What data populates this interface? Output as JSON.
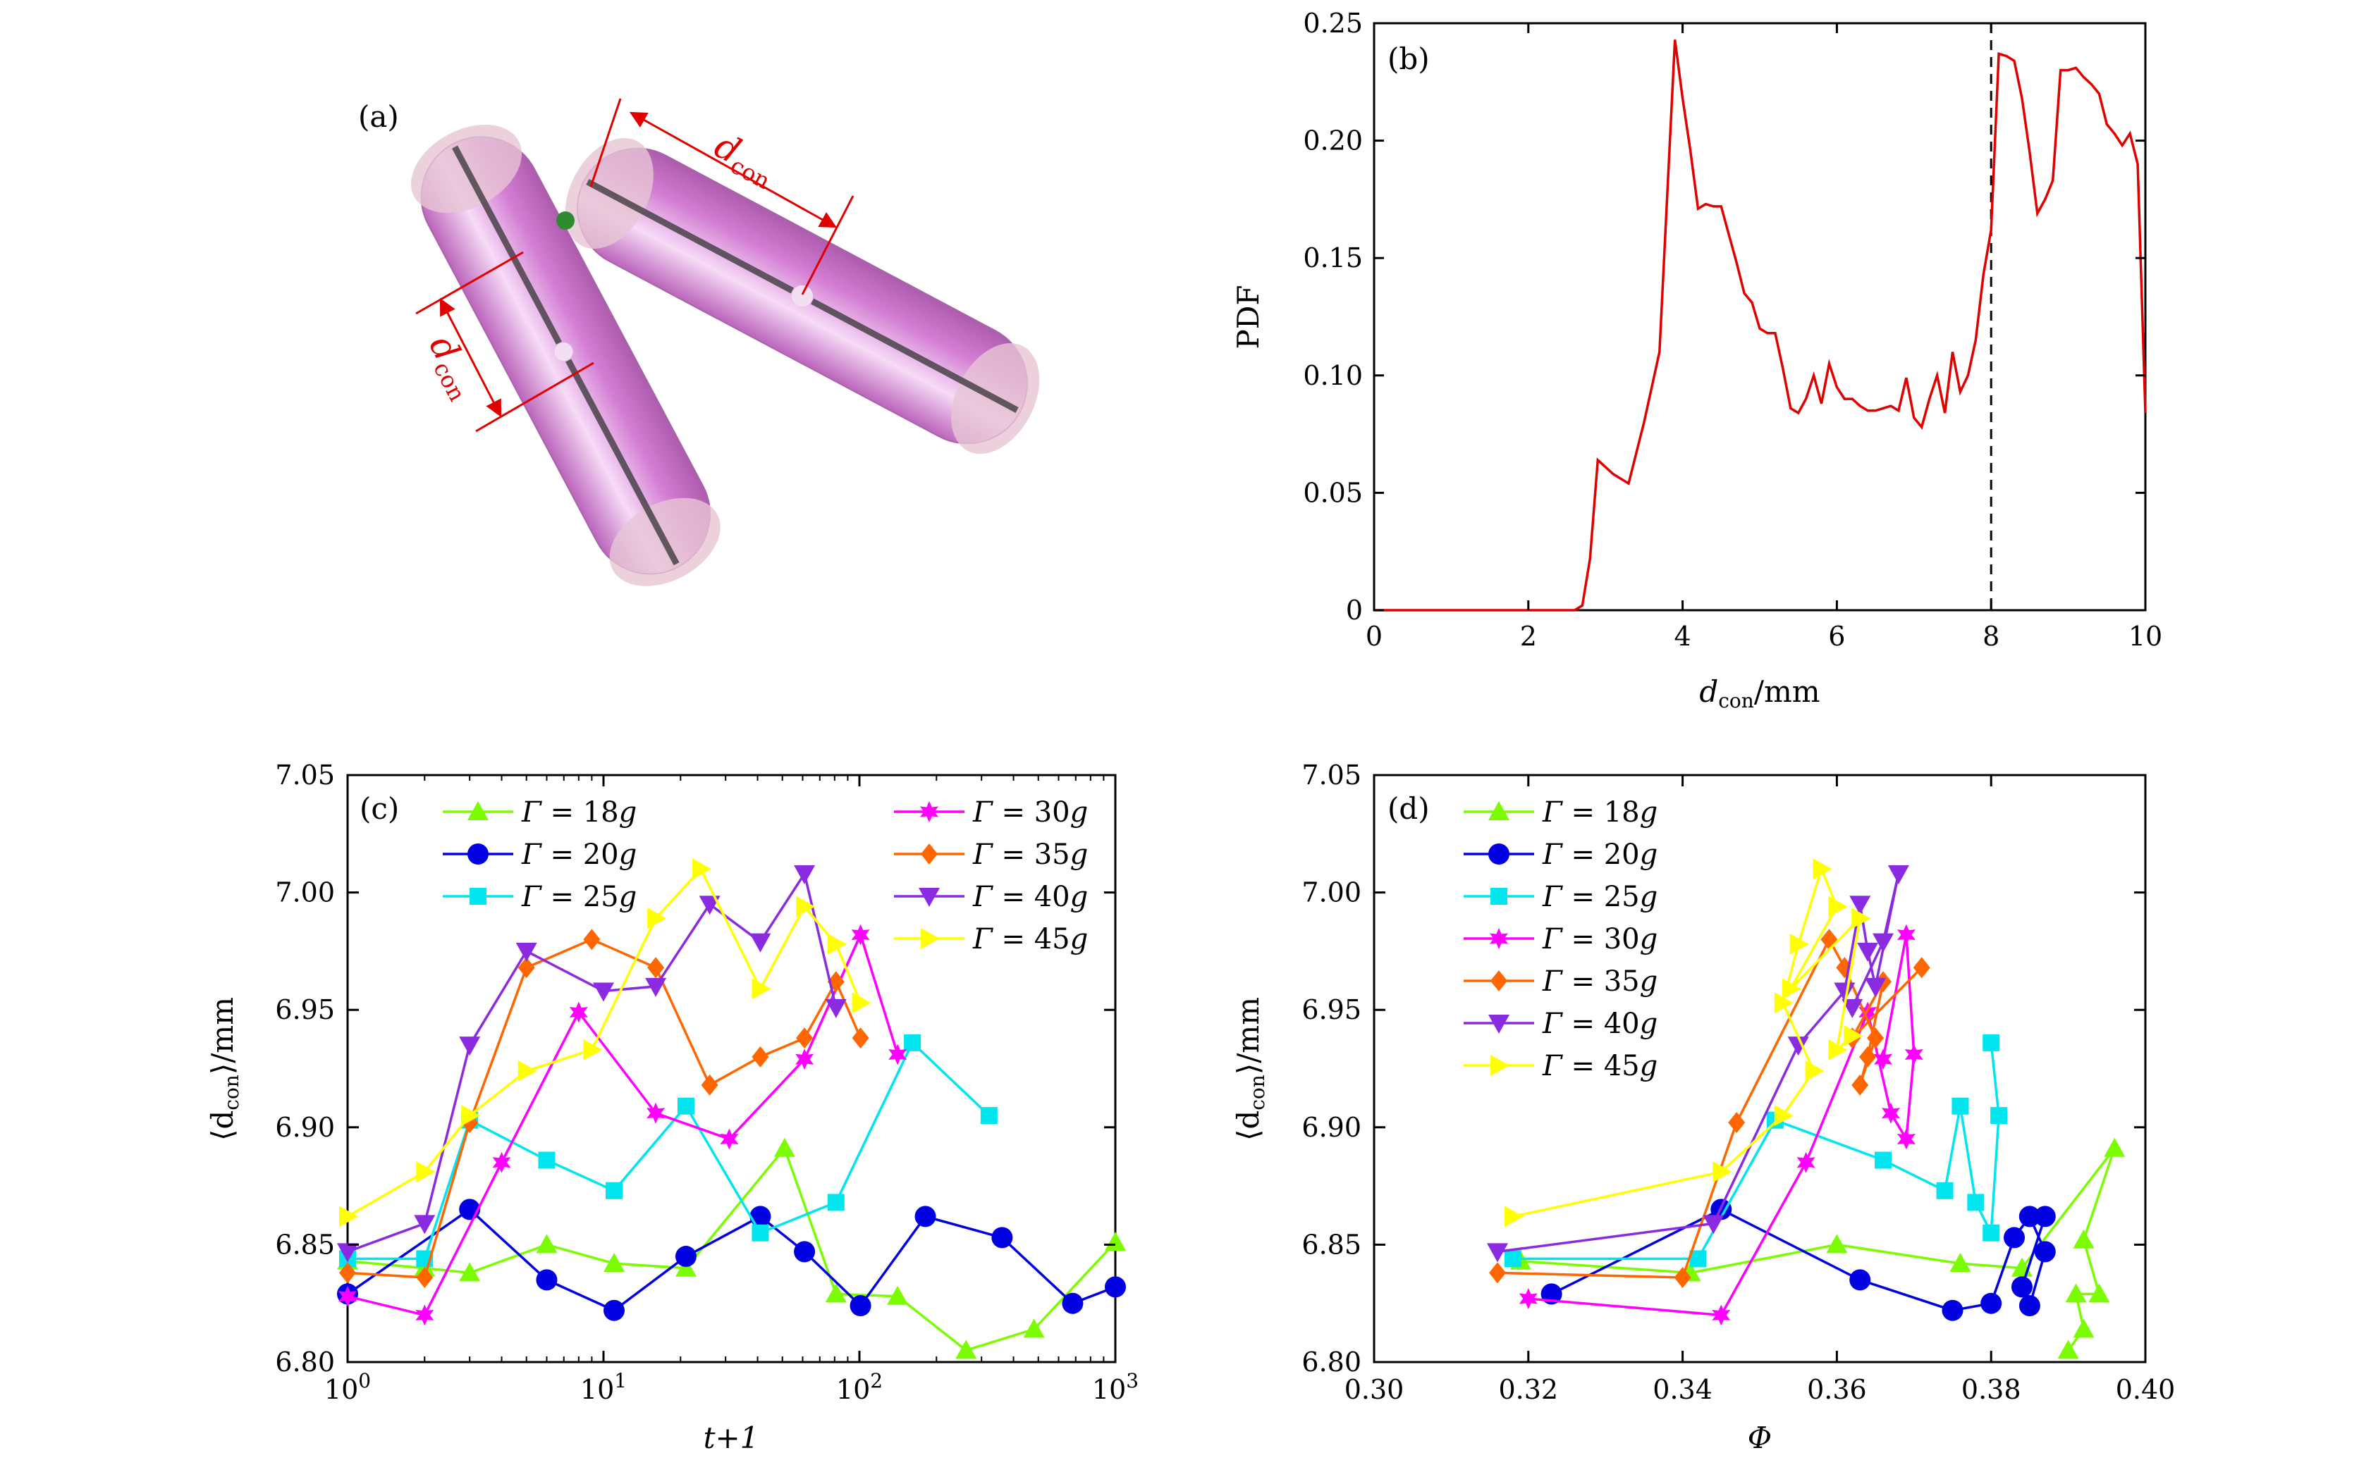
{
  "colors": {
    "g18": "#7cfc00",
    "g20": "#0000e0",
    "g25": "#00e5ee",
    "g30": "#ff00ff",
    "g35": "#ff6600",
    "g40": "#8a2be2",
    "g45": "#ffff00",
    "pdf_line": "#e00000",
    "rod_fill": "#cc66cc",
    "cap_fill": "#d9b3cc",
    "annot": "#e00000",
    "contact": "#2e8b2e"
  },
  "panel_a": {
    "label": "(a)",
    "dcon_1": "d",
    "dcon_1_sub": "con",
    "dcon_2": "d",
    "dcon_2_sub": "con"
  },
  "chart_data": [
    {
      "id": "b",
      "type": "line",
      "label": "(b)",
      "ylabel": "PDF",
      "xlabel_main": "d",
      "xlabel_sub": "con",
      "xlabel_unit": "/mm",
      "xlim": [
        0,
        10
      ],
      "ylim": [
        0,
        0.25
      ],
      "xticks": [
        0,
        2,
        4,
        6,
        8,
        10
      ],
      "yticks": [
        0,
        0.05,
        0.1,
        0.15,
        0.2,
        0.25
      ],
      "ytick_labels": [
        "0",
        "0.05",
        "0.10",
        "0.15",
        "0.20",
        "0.25"
      ],
      "vline_x": 8,
      "x": [
        0,
        2.6,
        2.7,
        2.8,
        2.9,
        3.1,
        3.3,
        3.5,
        3.7,
        3.9,
        4.0,
        4.1,
        4.2,
        4.3,
        4.4,
        4.5,
        4.6,
        4.7,
        4.8,
        4.9,
        5.0,
        5.1,
        5.2,
        5.3,
        5.4,
        5.5,
        5.6,
        5.7,
        5.8,
        5.9,
        6.0,
        6.1,
        6.2,
        6.3,
        6.4,
        6.5,
        6.6,
        6.7,
        6.8,
        6.9,
        7.0,
        7.1,
        7.2,
        7.3,
        7.4,
        7.5,
        7.6,
        7.7,
        7.8,
        7.9,
        8.0,
        8.1,
        8.2,
        8.3,
        8.4,
        8.5,
        8.6,
        8.7,
        8.8,
        8.9,
        9.0,
        9.1,
        9.2,
        9.3,
        9.4,
        9.5,
        9.6,
        9.7,
        9.8,
        9.9,
        10.0
      ],
      "values": [
        0,
        0,
        0.002,
        0.022,
        0.064,
        0.058,
        0.054,
        0.08,
        0.11,
        0.243,
        0.218,
        0.196,
        0.171,
        0.173,
        0.172,
        0.172,
        0.16,
        0.148,
        0.135,
        0.131,
        0.12,
        0.118,
        0.118,
        0.103,
        0.086,
        0.084,
        0.09,
        0.1,
        0.088,
        0.105,
        0.095,
        0.09,
        0.09,
        0.087,
        0.085,
        0.085,
        0.086,
        0.087,
        0.085,
        0.099,
        0.082,
        0.078,
        0.09,
        0.1,
        0.084,
        0.11,
        0.093,
        0.1,
        0.115,
        0.143,
        0.162,
        0.237,
        0.236,
        0.234,
        0.218,
        0.195,
        0.169,
        0.175,
        0.183,
        0.23,
        0.23,
        0.231,
        0.227,
        0.224,
        0.22,
        0.207,
        0.203,
        0.198,
        0.203,
        0.19,
        0.084
      ]
    },
    {
      "id": "c",
      "type": "line",
      "label": "(c)",
      "xscale": "log",
      "xlabel": "t+1",
      "ylabel_main": "⟨d",
      "ylabel_sub": "con",
      "ylabel_unit": "⟩/mm",
      "xlim": [
        1,
        1000
      ],
      "ylim": [
        6.8,
        7.05
      ],
      "xticks": [
        1,
        10,
        100,
        1000
      ],
      "xtick_labels": [
        {
          "base": "10",
          "exp": "0"
        },
        {
          "base": "10",
          "exp": "1"
        },
        {
          "base": "10",
          "exp": "2"
        },
        {
          "base": "10",
          "exp": "3"
        }
      ],
      "yticks": [
        6.8,
        6.85,
        6.9,
        6.95,
        7.0,
        7.05
      ],
      "ytick_labels": [
        "6.80",
        "6.85",
        "6.90",
        "6.95",
        "7.00",
        "7.05"
      ],
      "series": [
        {
          "key": "g18",
          "name_sym": "Γ",
          "name_val": " = 18",
          "name_unit": "g",
          "marker": "triangle-up",
          "x": [
            1,
            2,
            3,
            6,
            11,
            21,
            51,
            81,
            141,
            261,
            481,
            1000
          ],
          "values": [
            6.843,
            6.84,
            6.838,
            6.85,
            6.842,
            6.84,
            6.891,
            6.829,
            6.828,
            6.805,
            6.814,
            6.851
          ]
        },
        {
          "key": "g20",
          "name_sym": "Γ",
          "name_val": " = 20",
          "name_unit": "g",
          "marker": "circle",
          "x": [
            1,
            3,
            6,
            11,
            21,
            41,
            61,
            101,
            181,
            361,
            681,
            1000
          ],
          "values": [
            6.829,
            6.865,
            6.835,
            6.822,
            6.845,
            6.862,
            6.847,
            6.824,
            6.862,
            6.853,
            6.825,
            6.832
          ]
        },
        {
          "key": "g25",
          "name_sym": "Γ",
          "name_val": " = 25",
          "name_unit": "g",
          "marker": "square",
          "x": [
            1,
            2,
            3,
            6,
            11,
            21,
            41,
            81,
            161,
            321
          ],
          "values": [
            6.844,
            6.844,
            6.903,
            6.886,
            6.873,
            6.909,
            6.855,
            6.868,
            6.936,
            6.905
          ]
        },
        {
          "key": "g30",
          "name_sym": "Γ",
          "name_val": " = 30",
          "name_unit": "g",
          "marker": "star",
          "x": [
            1,
            2,
            4,
            8,
            16,
            31,
            61,
            101,
            141
          ],
          "values": [
            6.828,
            6.82,
            6.885,
            6.949,
            6.906,
            6.895,
            6.929,
            6.982,
            6.931
          ]
        },
        {
          "key": "g35",
          "name_sym": "Γ",
          "name_val": " = 35",
          "name_unit": "g",
          "marker": "diamond",
          "x": [
            1,
            2,
            3,
            5,
            9,
            16,
            26,
            41,
            61,
            81,
            101
          ],
          "values": [
            6.838,
            6.836,
            6.902,
            6.968,
            6.98,
            6.968,
            6.918,
            6.93,
            6.938,
            6.962,
            6.938
          ]
        },
        {
          "key": "g40",
          "name_sym": "Γ",
          "name_val": " = 40",
          "name_unit": "g",
          "marker": "triangle-down",
          "x": [
            1,
            2,
            3,
            5,
            10,
            16,
            26,
            41,
            61,
            81
          ],
          "values": [
            6.847,
            6.859,
            6.935,
            6.975,
            6.958,
            6.96,
            6.995,
            6.979,
            7.008,
            6.951
          ]
        },
        {
          "key": "g45",
          "name_sym": "Γ",
          "name_val": " = 45",
          "name_unit": "g",
          "marker": "triangle-right",
          "x": [
            1,
            2,
            3,
            5,
            9,
            16,
            24,
            41,
            61,
            81,
            101
          ],
          "values": [
            6.862,
            6.881,
            6.905,
            6.924,
            6.933,
            6.989,
            7.01,
            6.959,
            6.994,
            6.978,
            6.953
          ]
        }
      ]
    },
    {
      "id": "d",
      "type": "line",
      "label": "(d)",
      "xlabel": "Φ",
      "ylabel_main": "⟨d",
      "ylabel_sub": "con",
      "ylabel_unit": "⟩/mm",
      "xlim": [
        0.3,
        0.4
      ],
      "ylim": [
        6.8,
        7.05
      ],
      "xticks": [
        0.3,
        0.32,
        0.34,
        0.36,
        0.38,
        0.4
      ],
      "xtick_labels": [
        "0.30",
        "0.32",
        "0.34",
        "0.36",
        "0.38",
        "0.40"
      ],
      "yticks": [
        6.8,
        6.85,
        6.9,
        6.95,
        7.0,
        7.05
      ],
      "ytick_labels": [
        "6.80",
        "6.85",
        "6.90",
        "6.95",
        "7.00",
        "7.05"
      ],
      "series": [
        {
          "key": "g18",
          "name_sym": "Γ",
          "name_val": " = 18",
          "name_unit": "g",
          "marker": "triangle-up",
          "x": [
            0.319,
            0.341,
            0.36,
            0.376,
            0.384,
            0.396,
            0.392,
            0.394,
            0.391,
            0.392,
            0.39
          ],
          "values": [
            6.843,
            6.838,
            6.85,
            6.842,
            6.84,
            6.891,
            6.852,
            6.829,
            6.829,
            6.814,
            6.805
          ]
        },
        {
          "key": "g20",
          "name_sym": "Γ",
          "name_val": " = 20",
          "name_unit": "g",
          "marker": "circle",
          "x": [
            0.323,
            0.345,
            0.363,
            0.375,
            0.38,
            0.383,
            0.385,
            0.387,
            0.385,
            0.384,
            0.387,
            0.385
          ],
          "values": [
            6.829,
            6.865,
            6.835,
            6.822,
            6.825,
            6.853,
            6.862,
            6.847,
            6.824,
            6.832,
            6.862,
            6.862
          ]
        },
        {
          "key": "g25",
          "name_sym": "Γ",
          "name_val": " = 25",
          "name_unit": "g",
          "marker": "square",
          "x": [
            0.318,
            0.342,
            0.352,
            0.366,
            0.374,
            0.376,
            0.378,
            0.38,
            0.381,
            0.38
          ],
          "values": [
            6.844,
            6.844,
            6.903,
            6.886,
            6.873,
            6.909,
            6.868,
            6.855,
            6.905,
            6.936
          ]
        },
        {
          "key": "g30",
          "name_sym": "Γ",
          "name_val": " = 30",
          "name_unit": "g",
          "marker": "star",
          "x": [
            0.32,
            0.345,
            0.356,
            0.364,
            0.367,
            0.369,
            0.37,
            0.369,
            0.366
          ],
          "values": [
            6.827,
            6.82,
            6.885,
            6.949,
            6.906,
            6.895,
            6.931,
            6.982,
            6.929
          ]
        },
        {
          "key": "g35",
          "name_sym": "Γ",
          "name_val": " = 35",
          "name_unit": "g",
          "marker": "diamond",
          "x": [
            0.316,
            0.34,
            0.347,
            0.359,
            0.361,
            0.365,
            0.363,
            0.364,
            0.366,
            0.362,
            0.371
          ],
          "values": [
            6.838,
            6.836,
            6.902,
            6.98,
            6.968,
            6.938,
            6.918,
            6.93,
            6.962,
            6.938,
            6.968
          ]
        },
        {
          "key": "g40",
          "name_sym": "Γ",
          "name_val": " = 40",
          "name_unit": "g",
          "marker": "triangle-down",
          "x": [
            0.316,
            0.344,
            0.355,
            0.361,
            0.363,
            0.364,
            0.365,
            0.368,
            0.366,
            0.362
          ],
          "values": [
            6.847,
            6.859,
            6.935,
            6.958,
            6.995,
            6.975,
            6.96,
            7.008,
            6.979,
            6.951
          ]
        },
        {
          "key": "g45",
          "name_sym": "Γ",
          "name_val": " = 45",
          "name_unit": "g",
          "marker": "triangle-right",
          "x": [
            0.318,
            0.345,
            0.353,
            0.357,
            0.353,
            0.355,
            0.358,
            0.36,
            0.354,
            0.363,
            0.36,
            0.362
          ],
          "values": [
            6.862,
            6.881,
            6.905,
            6.924,
            6.953,
            6.978,
            7.01,
            6.994,
            6.959,
            6.989,
            6.933,
            6.939
          ]
        }
      ]
    }
  ]
}
